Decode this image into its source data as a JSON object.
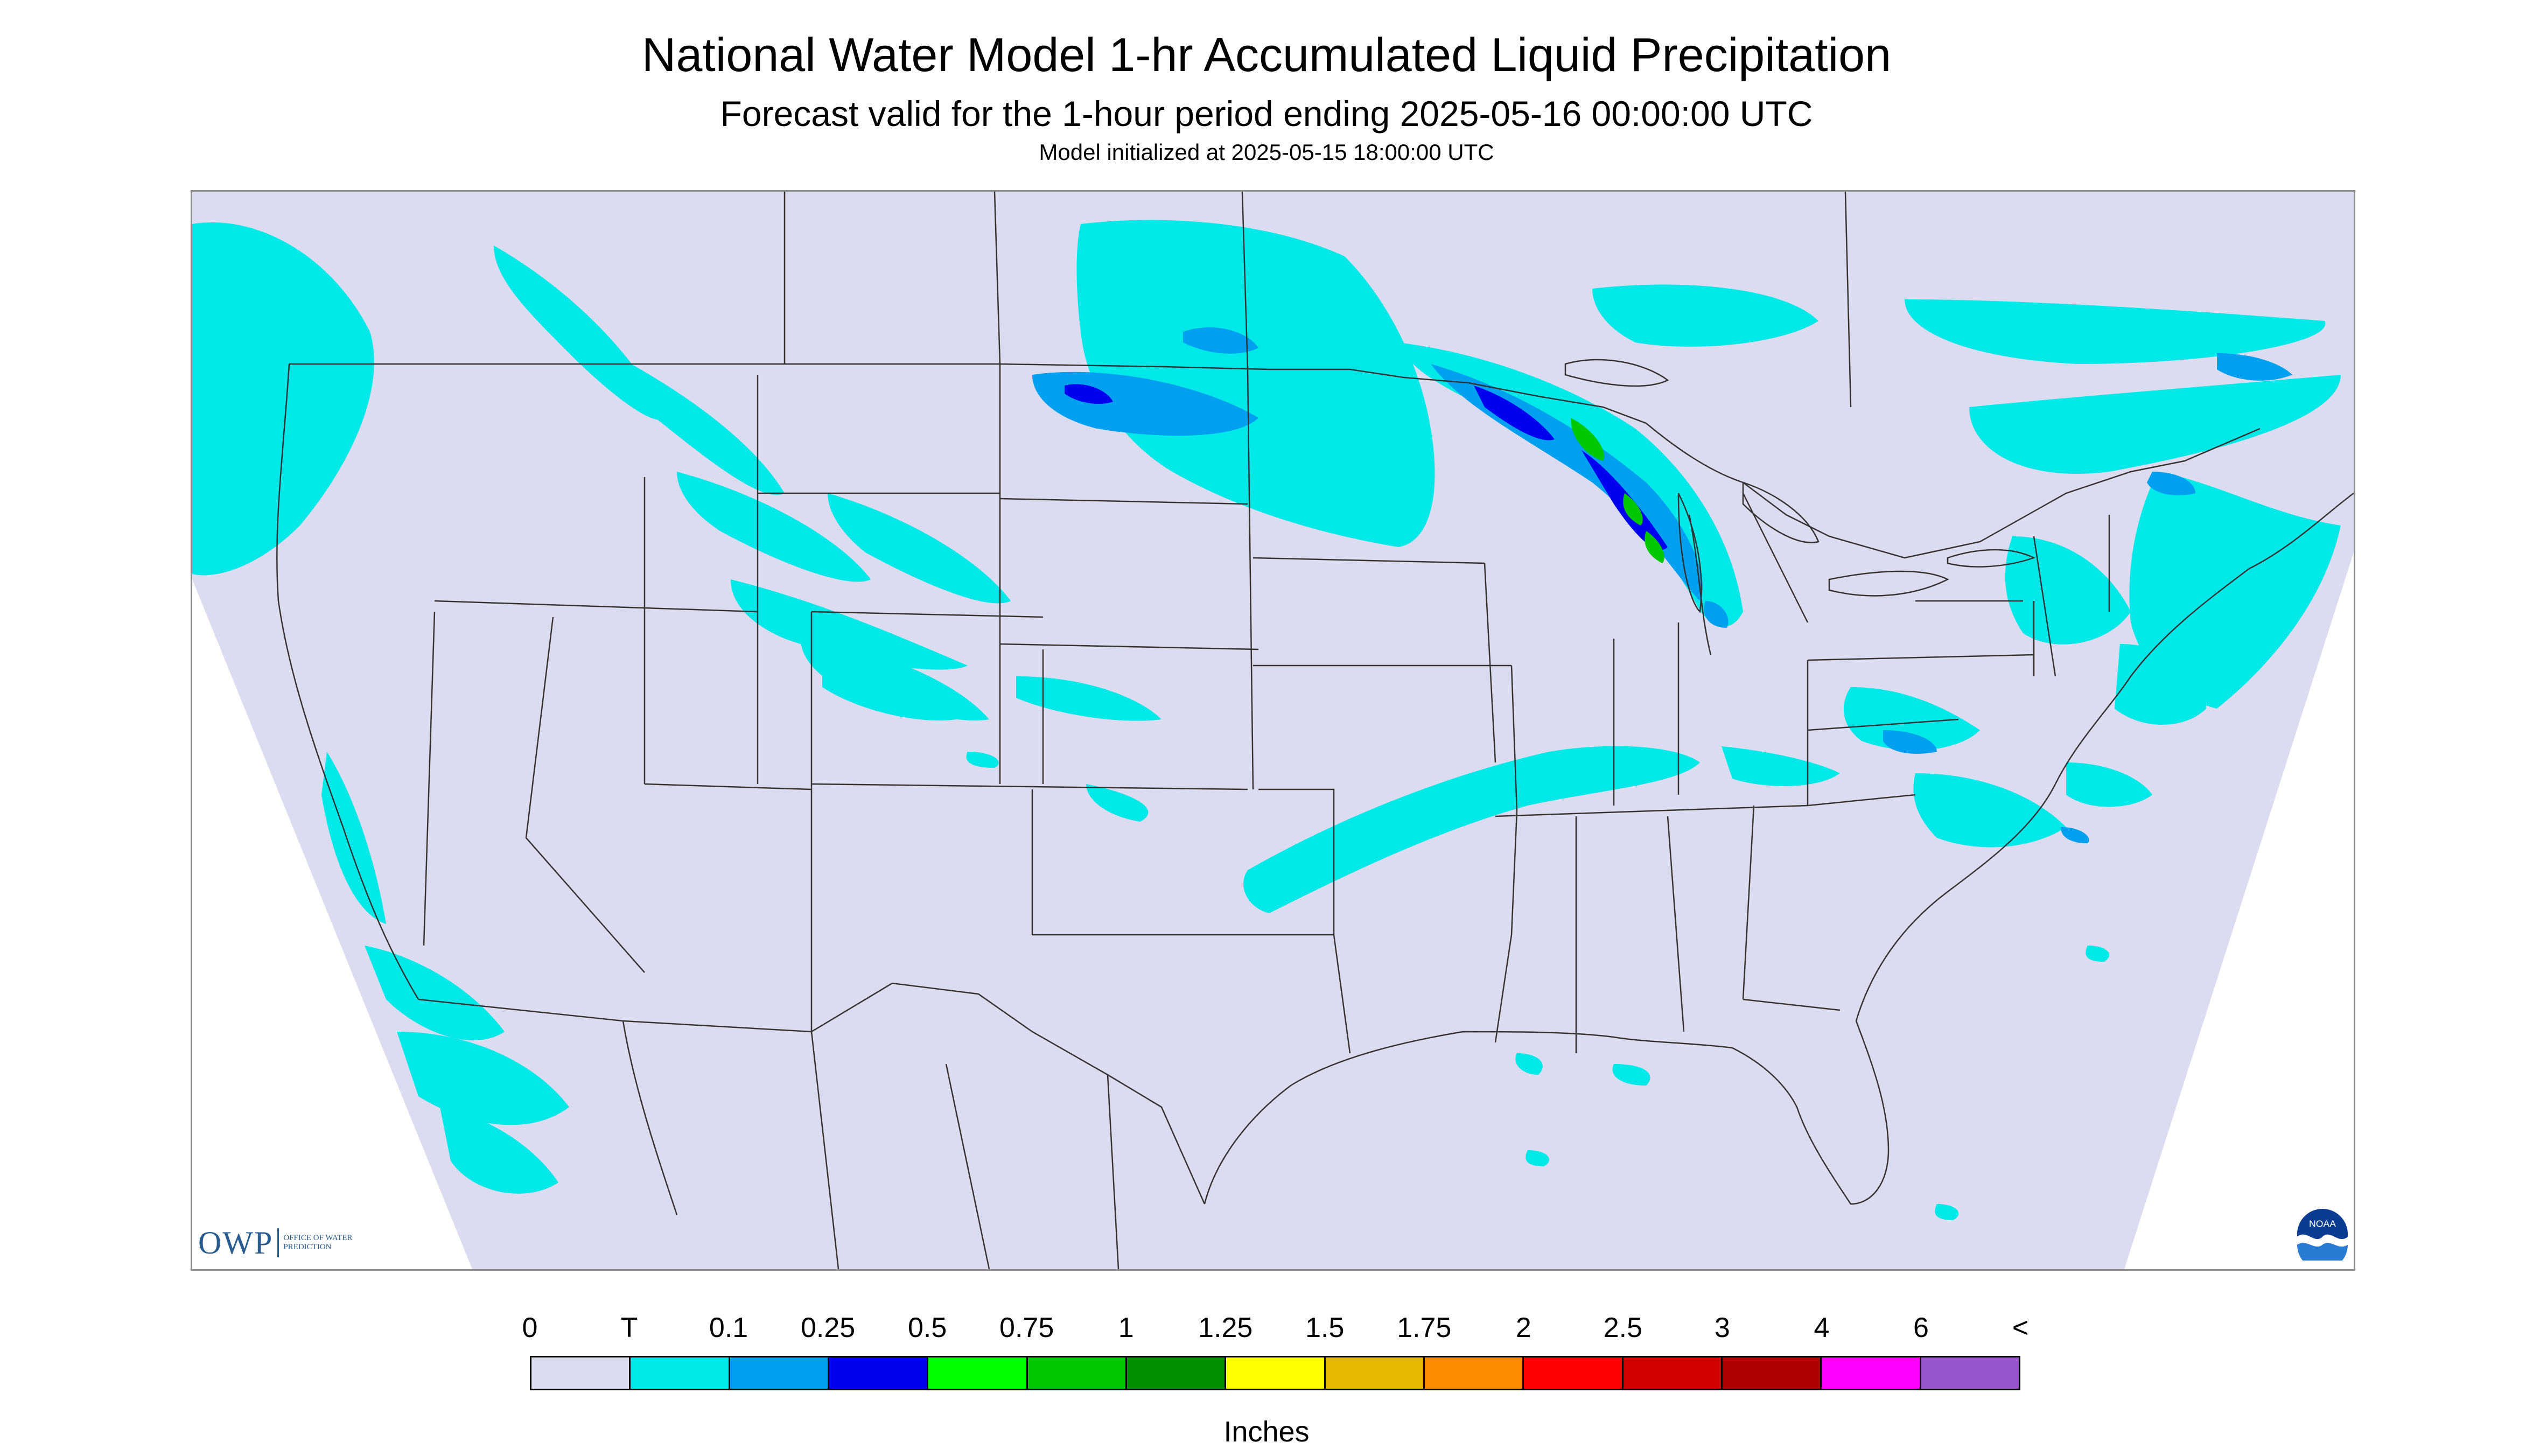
{
  "header": {
    "title": "National Water Model 1-hr Accumulated Liquid Precipitation",
    "subtitle": "Forecast valid for the 1-hour period ending 2025-05-16 00:00:00 UTC",
    "init": "Model initialized at 2025-05-15 18:00:00 UTC"
  },
  "logos": {
    "owp_main": "OWP",
    "owp_sub": "OFFICE OF WATER PREDICTION",
    "noaa": "NOAA"
  },
  "legend": {
    "labels": [
      "0",
      "T",
      "0.1",
      "0.25",
      "0.5",
      "0.75",
      "1",
      "1.25",
      "1.5",
      "1.75",
      "2",
      "2.5",
      "3",
      "4",
      "6",
      "<"
    ],
    "colors": [
      "#dcdcf0",
      "#00e8e8",
      "#00a0f0",
      "#0000f0",
      "#00ff00",
      "#00c800",
      "#009000",
      "#ffff00",
      "#e6b800",
      "#ff8c00",
      "#ff0000",
      "#d40000",
      "#b00000",
      "#ff00ff",
      "#9955cc"
    ],
    "units": "Inches"
  },
  "colors": {
    "domain_fill": "#dcdcf0",
    "trace": "#00e8e8",
    "light": "#00a0f0",
    "moderate": "#0000f0",
    "green": "#00c800",
    "boundary": "#333333"
  }
}
